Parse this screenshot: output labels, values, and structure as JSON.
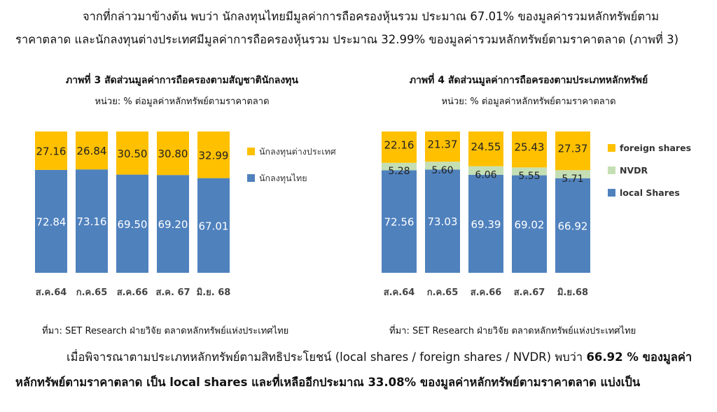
{
  "para1": {
    "line1": "จากที่กล่าวมาข้างต้น พบว่า นักลงทุนไทยมีมูลค่าการถือครองหุ้นรวม ประมาณ 67.01% ของมูลค่ารวมหลักทรัพย์ตาม",
    "line2": "ราคาตลาด และนักลงทุนต่างประเทศมีมูลค่าการถือครองหุ้นรวม ประมาณ 32.99% ของมูลค่ารวมหลักทรัพย์ตามราคาตลาด (ภาพที่ 3)"
  },
  "para2": {
    "line1_pre": "เมื่อพิจารณาตามประเภทหลักทรัพย์ตามสิทธิประโยชน์ (local shares / foreign shares / NVDR) พบว่า ",
    "line1_bold": "66.92 % ของมูลค่า",
    "line2": "หลักทรัพย์ตามราคาตลาด เป็น local shares และที่เหลืออีกประมาณ 33.08% ของมูลค่าหลักทรัพย์ตามราคาตลาด แบ่งเป็น"
  },
  "colors": {
    "foreign": "#FFC000",
    "local": "#4F81BD",
    "nvdr": "#C5DFB4"
  },
  "chart_data": [
    {
      "type": "bar",
      "stacked": true,
      "title": "ภาพที่ 3 สัดส่วนมูลค่าการถือครองตามสัญชาตินักลงทุน",
      "subtitle": "หน่วย: % ต่อมูลค่าหลักทรัพย์ตามราคาตลาด",
      "source": "ที่มา: SET Research ฝ่ายวิจัย ตลาดหลักทรัพย์แห่งประเทศไทย",
      "categories": [
        "ส.ค.64",
        "ก.ค.65",
        "ส.ค.66",
        "ส.ค. 67",
        "มิ.ย. 68"
      ],
      "series": [
        {
          "name": "นักลงทุนไทย",
          "key": "local",
          "values": [
            72.84,
            73.16,
            69.5,
            69.2,
            67.01
          ],
          "labels": [
            "72.84",
            "73.16",
            "69.50",
            "69.20",
            "67.01"
          ]
        },
        {
          "name": "นักลงทุนต่างประเทศ",
          "key": "foreign",
          "values": [
            27.16,
            26.84,
            30.5,
            30.8,
            32.99
          ],
          "labels": [
            "27.16",
            "26.84",
            "30.50",
            "30.80",
            "32.99"
          ]
        }
      ],
      "legend_order": [
        "foreign",
        "local"
      ],
      "legend": "right",
      "ylim": [
        0,
        100
      ]
    },
    {
      "type": "bar",
      "stacked": true,
      "title": "ภาพที่ 4 สัดส่วนมูลค่าการถือครองตามประเภทหลักทรัพย์",
      "subtitle": "หน่วย: % ต่อมูลค่าหลักทรัพย์ตามราคาตลาด",
      "source": "ที่มา: SET Research ฝ่ายวิจัย ตลาดหลักทรัพย์แห่งประเทศไทย",
      "categories": [
        "ส.ค.64",
        "ก.ค.65",
        "ส.ค.66",
        "ส.ค.67",
        "มิ.ย.68"
      ],
      "series": [
        {
          "name": "local Shares",
          "key": "local",
          "values": [
            72.56,
            73.03,
            69.39,
            69.02,
            66.92
          ],
          "labels": [
            "72.56",
            "73.03",
            "69.39",
            "69.02",
            "66.92"
          ]
        },
        {
          "name": "NVDR",
          "key": "nvdr",
          "values": [
            5.28,
            5.6,
            6.06,
            5.55,
            5.71
          ],
          "labels": [
            "5.28",
            "5.60",
            "6.06",
            "5.55",
            "5.71"
          ]
        },
        {
          "name": "foreign shares",
          "key": "foreign",
          "values": [
            22.16,
            21.37,
            24.55,
            25.43,
            27.37
          ],
          "labels": [
            "22.16",
            "21.37",
            "24.55",
            "25.43",
            "27.37"
          ]
        }
      ],
      "legend_order": [
        "foreign",
        "nvdr",
        "local"
      ],
      "legend": "right",
      "ylim": [
        0,
        100
      ]
    }
  ]
}
